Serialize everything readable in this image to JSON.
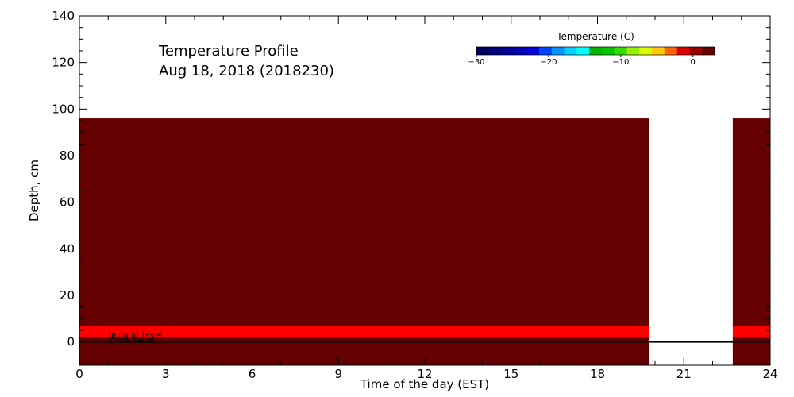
{
  "chart_data": {
    "type": "heatmap",
    "title": "Temperature Profile",
    "subtitle": "Aug 18, 2018 (2018230)",
    "xlabel": "Time of the day (EST)",
    "ylabel": "Depth, cm",
    "xlim": [
      0,
      24
    ],
    "ylim": [
      -10,
      140
    ],
    "xticks": [
      0,
      3,
      6,
      9,
      12,
      15,
      18,
      21,
      24
    ],
    "yticks": [
      0,
      20,
      40,
      60,
      80,
      100,
      120,
      140
    ],
    "colorbar": {
      "title": "Temperature (C)",
      "range": [
        -30,
        3
      ],
      "ticks": [
        -30,
        -20,
        -10,
        0
      ],
      "colors": [
        "#00005a",
        "#000078",
        "#000096",
        "#0000b4",
        "#0000dc",
        "#0046ff",
        "#0096ff",
        "#00d2ff",
        "#00ffff",
        "#00b400",
        "#00c800",
        "#32dc00",
        "#96f000",
        "#dcff00",
        "#ffc800",
        "#ff6400",
        "#dc0000",
        "#960000",
        "#640000"
      ]
    },
    "cells": [
      {
        "x_start": 0,
        "x_end": 19.8,
        "y_bottom": 2,
        "y_top": 7,
        "color": "#ff0000"
      },
      {
        "x_start": 0,
        "x_end": 19.8,
        "y_bottom": 7,
        "y_top": 96,
        "color": "#640000"
      },
      {
        "x_start": 0,
        "x_end": 19.8,
        "y_bottom": -10,
        "y_top": 2,
        "color": "#640000"
      },
      {
        "x_start": 22.7,
        "x_end": 24,
        "y_bottom": 2,
        "y_top": 7,
        "color": "#ff0000"
      },
      {
        "x_start": 22.7,
        "x_end": 24,
        "y_bottom": 7,
        "y_top": 96,
        "color": "#640000"
      },
      {
        "x_start": 22.7,
        "x_end": 24,
        "y_bottom": -10,
        "y_top": 2,
        "color": "#640000"
      }
    ],
    "ground_level": 0,
    "annotations": [
      {
        "text": "ground level",
        "x": 1,
        "y": 2
      },
      {
        "text": "snow level",
        "x": 1,
        "y": -0.5
      }
    ]
  }
}
